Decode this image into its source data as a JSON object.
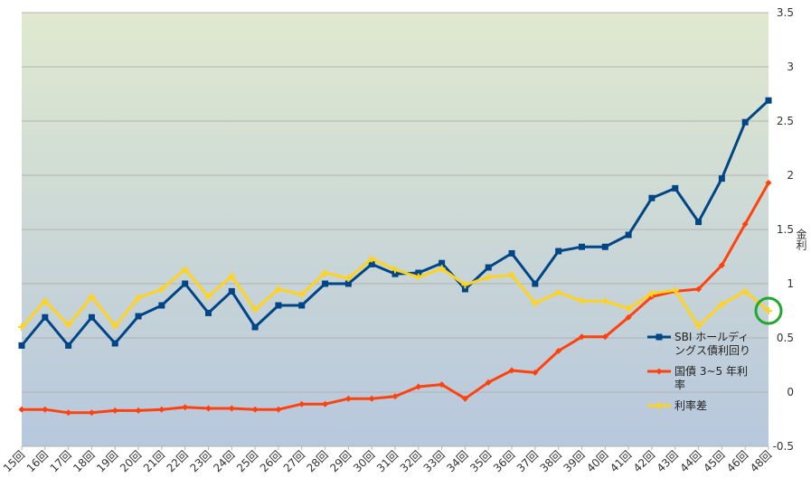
{
  "chart_data": {
    "type": "line",
    "ylabel": "金利",
    "categories": [
      "15回",
      "16回",
      "17回",
      "18回",
      "19回",
      "20回",
      "21回",
      "22回",
      "23回",
      "24回",
      "25回",
      "26回",
      "27回",
      "28回",
      "29回",
      "30回",
      "31回",
      "32回",
      "33回",
      "34回",
      "35回",
      "36回",
      "37回",
      "38回",
      "39回",
      "40回",
      "41回",
      "42回",
      "43回",
      "44回",
      "45回",
      "46回",
      "48回"
    ],
    "series": [
      {
        "name": "SBI ホールディングス債利回り",
        "color": "#004586",
        "marker": "square",
        "values": [
          0.43,
          0.69,
          0.43,
          0.69,
          0.45,
          0.7,
          0.8,
          1.0,
          0.73,
          0.93,
          0.6,
          0.8,
          0.8,
          1.0,
          1.0,
          1.18,
          1.09,
          1.1,
          1.19,
          0.95,
          1.15,
          1.28,
          1.0,
          1.3,
          1.34,
          1.34,
          1.45,
          1.79,
          1.88,
          1.57,
          1.97,
          2.49,
          2.69
        ]
      },
      {
        "name": "国債 3~5 年利率",
        "color": "#ff420e",
        "marker": "diamond",
        "values": [
          -0.16,
          -0.16,
          -0.19,
          -0.19,
          -0.17,
          -0.17,
          -0.16,
          -0.14,
          -0.15,
          -0.15,
          -0.16,
          -0.16,
          -0.11,
          -0.11,
          -0.06,
          -0.06,
          -0.04,
          0.05,
          0.07,
          -0.06,
          0.09,
          0.2,
          0.18,
          0.38,
          0.51,
          0.51,
          0.69,
          0.88,
          0.93,
          0.95,
          1.17,
          1.55,
          1.93
        ]
      },
      {
        "name": "利率差",
        "color": "#ffd320",
        "marker": "cross",
        "values": [
          0.6,
          0.84,
          0.62,
          0.88,
          0.61,
          0.87,
          0.95,
          1.13,
          0.88,
          1.07,
          0.76,
          0.95,
          0.9,
          1.1,
          1.05,
          1.23,
          1.13,
          1.06,
          1.14,
          0.99,
          1.06,
          1.08,
          0.82,
          0.92,
          0.84,
          0.84,
          0.77,
          0.91,
          0.94,
          0.61,
          0.81,
          0.93,
          0.75
        ]
      }
    ],
    "ylim": [
      -0.5,
      3.5
    ],
    "yticks": [
      -0.5,
      0,
      0.5,
      1,
      1.5,
      2,
      2.5,
      3,
      3.5
    ],
    "grid": true
  }
}
